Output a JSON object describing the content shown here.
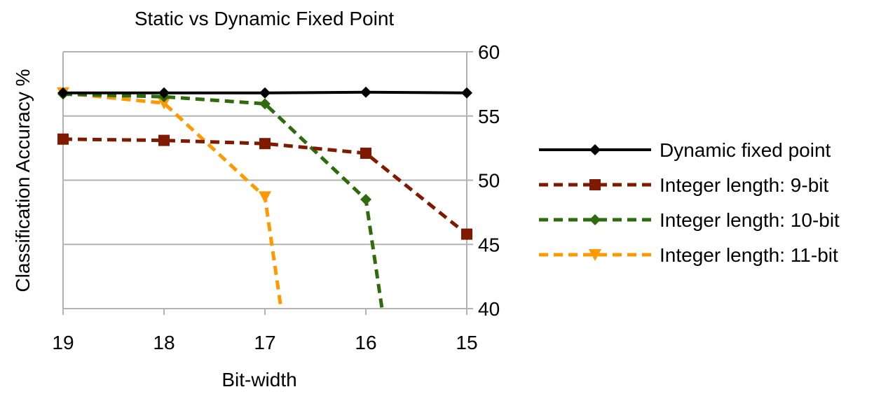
{
  "chart_data": {
    "type": "line",
    "title": "Static vs Dynamic Fixed Point",
    "xlabel": "Bit-width",
    "ylabel": "Classification Accuracy %",
    "x": [
      19,
      18,
      17,
      16,
      15
    ],
    "x_tick_labels": [
      "19",
      "18",
      "17",
      "16",
      "15"
    ],
    "ylim": [
      40,
      60
    ],
    "y_ticks": [
      40,
      45,
      50,
      55,
      60
    ],
    "y_tick_labels": [
      "40",
      "45",
      "50",
      "55",
      "60"
    ],
    "y_axis_side": "right",
    "grid": true,
    "legend_position": "right",
    "series": [
      {
        "name": "Dynamic fixed point",
        "color": "#000000",
        "dash": "solid",
        "marker": "diamond",
        "points": [
          [
            19,
            56.8
          ],
          [
            18,
            56.8
          ],
          [
            17,
            56.8
          ],
          [
            16,
            56.85
          ],
          [
            15,
            56.8
          ]
        ]
      },
      {
        "name": "Integer length: 9-bit",
        "color": "#7f1a00",
        "dash": "dashed",
        "marker": "square",
        "points": [
          [
            19,
            53.2
          ],
          [
            18,
            53.1
          ],
          [
            17,
            52.85
          ],
          [
            16,
            52.1
          ],
          [
            15,
            45.8
          ]
        ]
      },
      {
        "name": "Integer length: 10-bit",
        "color": "#2e6b0c",
        "dash": "dashed",
        "marker": "diamond",
        "points": [
          [
            19,
            56.7
          ],
          [
            18,
            56.5
          ],
          [
            17,
            55.95
          ],
          [
            16,
            48.5
          ],
          [
            15.84,
            40
          ]
        ]
      },
      {
        "name": "Integer length: 11-bit",
        "color": "#ff9900",
        "dash": "dashed",
        "marker": "triangle",
        "points": [
          [
            19,
            56.8
          ],
          [
            18,
            56.0
          ],
          [
            17,
            48.7
          ],
          [
            16.84,
            40
          ]
        ],
        "marker_count": 3
      }
    ]
  }
}
